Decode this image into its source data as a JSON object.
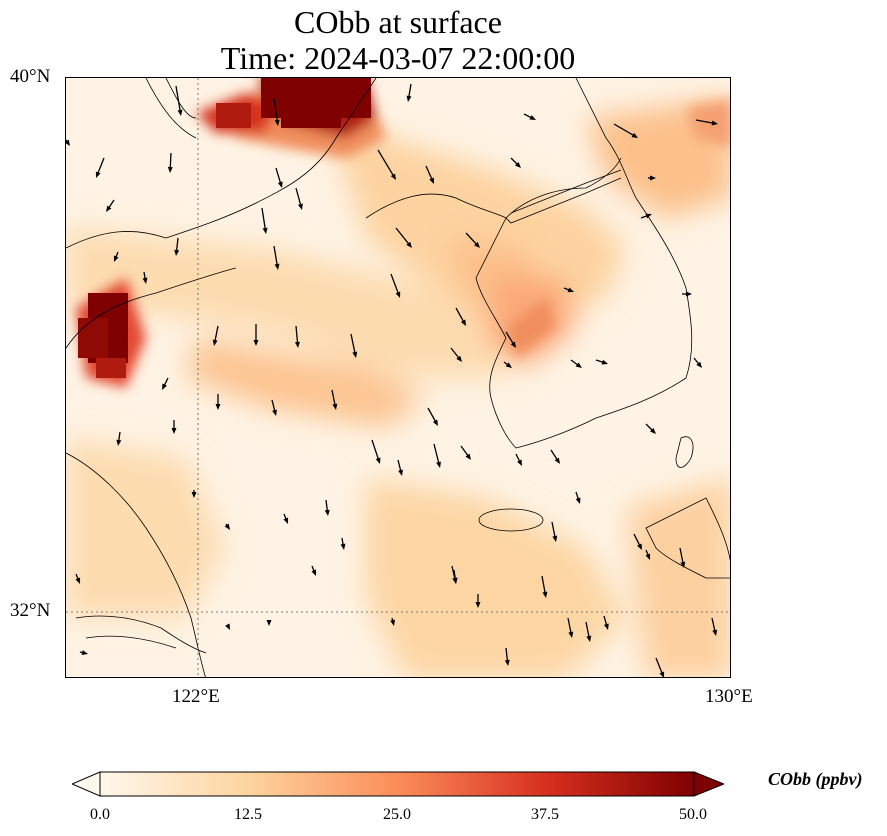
{
  "title": {
    "line1": "CObb at surface",
    "line2": "Time: 2024-03-07 22:00:00"
  },
  "axes": {
    "lat_ticks": [
      "40°N",
      "32°N"
    ],
    "lon_ticks": [
      "122°E",
      "130°E"
    ],
    "lon_range": [
      120,
      130
    ],
    "lat_range": [
      31,
      40
    ]
  },
  "colorbar": {
    "title": "CObb (ppbv)",
    "ticks": [
      "0.0",
      "12.5",
      "25.0",
      "37.5",
      "50.0"
    ],
    "range": [
      0,
      50
    ],
    "colormap": "OrRd",
    "colors": [
      "#fff7ec",
      "#fdd49e",
      "#fc8d59",
      "#d7301f",
      "#7f0000"
    ]
  },
  "map": {
    "variable": "CObb",
    "level": "surface",
    "features": [
      "coastlines",
      "lat-lon gridlines",
      "wind vectors"
    ]
  }
}
